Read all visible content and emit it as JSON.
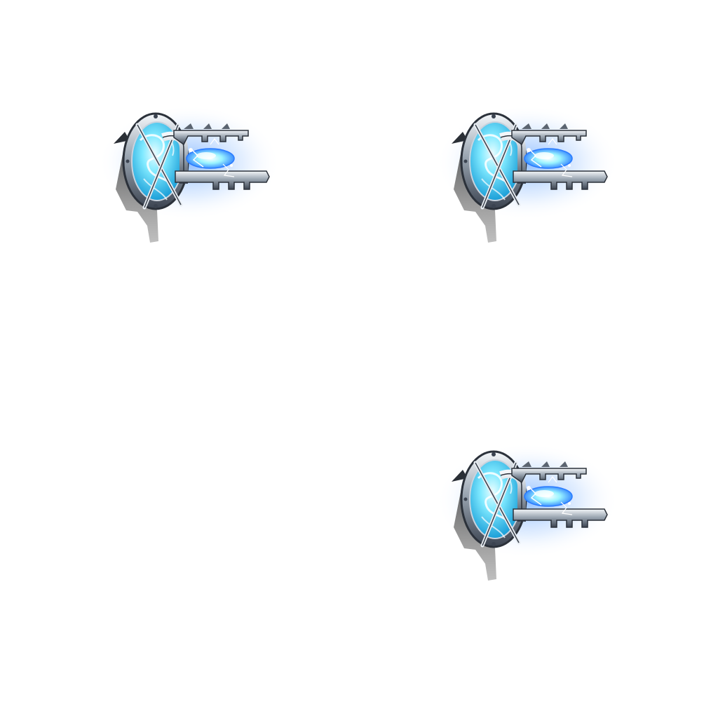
{
  "sprite_sheet": {
    "layout": "2x2",
    "asset": "glowing-crystal-key-icon",
    "frames": [
      {
        "id": "frame-1",
        "visible": true
      },
      {
        "id": "frame-2",
        "visible": true
      },
      {
        "id": "frame-3",
        "visible": false
      },
      {
        "id": "frame-4",
        "visible": true
      }
    ]
  },
  "colors": {
    "background": "#ffffff",
    "glow": "#3a8cff",
    "crystal": "#7fe9ff",
    "crystal_core": "#d8fbff",
    "metal_light": "#e6ecf2",
    "metal_mid": "#9aa5b1",
    "metal_dark": "#3b4350",
    "shadow": "#5a5a5a"
  }
}
